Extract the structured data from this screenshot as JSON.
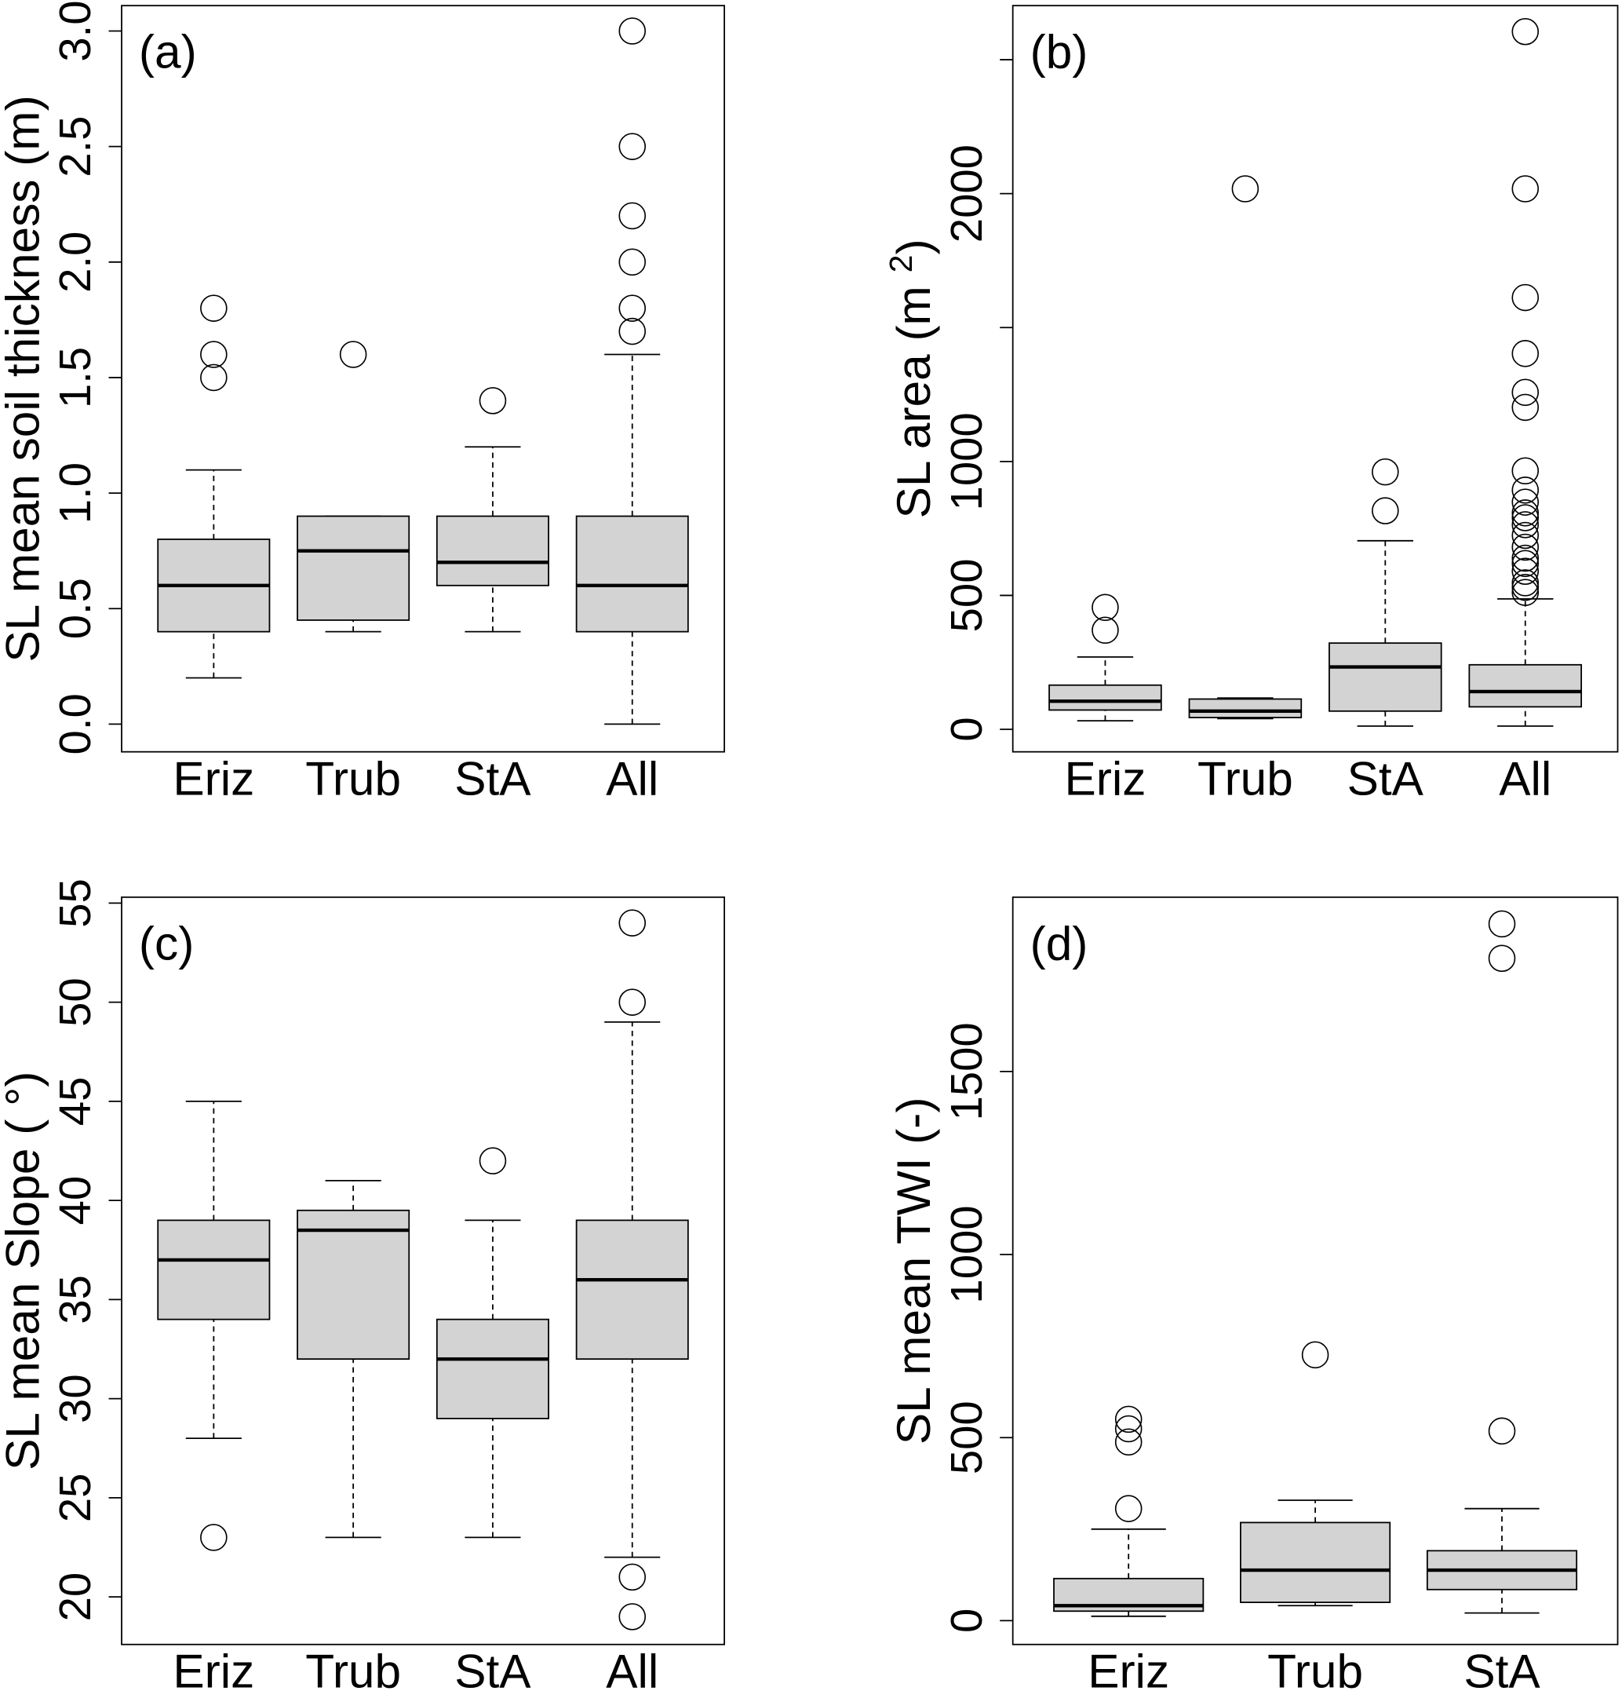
{
  "chart_data": [
    {
      "type": "boxplot",
      "panel_label": "(a)",
      "ylabel_parts": [
        {
          "text": "SL mean soil thickness (m)"
        }
      ],
      "categories": [
        "Eriz",
        "Trub",
        "StA",
        "All"
      ],
      "ylim": [
        -0.12,
        3.11
      ],
      "yticks": [
        0,
        0.5,
        1,
        1.5,
        2,
        2.5,
        3
      ],
      "ytick_labels": [
        "0.0",
        "0.5",
        "1.0",
        "1.5",
        "2.0",
        "2.5",
        "3.0"
      ],
      "boxes": [
        {
          "low": 0.2,
          "q1": 0.4,
          "median": 0.6,
          "q3": 0.8,
          "high": 1.1,
          "outliers": [
            1.5,
            1.6,
            1.8
          ]
        },
        {
          "low": 0.4,
          "q1": 0.45,
          "median": 0.75,
          "q3": 0.9,
          "high": 0.9,
          "outliers": [
            1.6
          ]
        },
        {
          "low": 0.4,
          "q1": 0.6,
          "median": 0.7,
          "q3": 0.9,
          "high": 1.2,
          "outliers": [
            1.4
          ]
        },
        {
          "low": 0.0,
          "q1": 0.4,
          "median": 0.6,
          "q3": 0.9,
          "high": 1.6,
          "outliers": [
            1.7,
            1.8,
            2.0,
            2.2,
            2.5,
            3.0
          ]
        }
      ],
      "fill_color": "#d3d3d3"
    },
    {
      "type": "boxplot",
      "panel_label": "(b)",
      "ylabel_parts": [
        {
          "text": "SL area (m "
        },
        {
          "text": "2",
          "sup": true
        },
        {
          "text": ")"
        }
      ],
      "categories": [
        "Eriz",
        "Trub",
        "StA",
        "All"
      ],
      "ylim": [
        -84,
        2702
      ],
      "yticks": [
        0,
        500,
        1000,
        1500,
        2000,
        2500
      ],
      "ytick_labels": [
        "0",
        "500",
        "1000",
        "",
        "2000",
        ""
      ],
      "boxes": [
        {
          "low": 32,
          "q1": 72,
          "median": 105,
          "q3": 165,
          "high": 270,
          "outliers": [
            370,
            455
          ]
        },
        {
          "low": 40,
          "q1": 44,
          "median": 68,
          "q3": 113,
          "high": 117,
          "outliers": [
            2018
          ]
        },
        {
          "low": 12,
          "q1": 68,
          "median": 233,
          "q3": 322,
          "high": 704,
          "outliers": [
            816,
            961
          ]
        },
        {
          "low": 12,
          "q1": 84,
          "median": 141,
          "q3": 241,
          "high": 487,
          "outliers": [
            511,
            530,
            547,
            590,
            619,
            639,
            680,
            724,
            764,
            790,
            808,
            848,
            893,
            965,
            1202,
            1258,
            1403,
            1612,
            2018,
            2605
          ]
        }
      ],
      "fill_color": "#d3d3d3"
    },
    {
      "type": "boxplot",
      "panel_label": "(c)",
      "ylabel_parts": [
        {
          "text": "SL mean Slope ( °)"
        }
      ],
      "categories": [
        "Eriz",
        "Trub",
        "StA",
        "All"
      ],
      "ylim": [
        17.6,
        55.3
      ],
      "yticks": [
        20,
        25,
        30,
        35,
        40,
        45,
        50,
        55
      ],
      "ytick_labels": [
        "20",
        "25",
        "30",
        "35",
        "40",
        "45",
        "50",
        "55"
      ],
      "boxes": [
        {
          "low": 28,
          "q1": 34,
          "median": 37,
          "q3": 39,
          "high": 45,
          "outliers": [
            23
          ]
        },
        {
          "low": 23,
          "q1": 32,
          "median": 38.5,
          "q3": 39.5,
          "high": 41,
          "outliers": []
        },
        {
          "low": 23,
          "q1": 29,
          "median": 32,
          "q3": 34,
          "high": 39,
          "outliers": [
            42
          ]
        },
        {
          "low": 22,
          "q1": 32,
          "median": 36,
          "q3": 39,
          "high": 49,
          "outliers": [
            19,
            21,
            50,
            54
          ]
        }
      ],
      "fill_color": "#d3d3d3"
    },
    {
      "type": "boxplot",
      "panel_label": "(d)",
      "ylabel_parts": [
        {
          "text": "SL mean TWI (-)"
        }
      ],
      "categories": [
        "Eriz",
        "Trub",
        "StA"
      ],
      "ylim": [
        -65,
        1976
      ],
      "yticks": [
        0,
        500,
        1000,
        1500
      ],
      "ytick_labels": [
        "0",
        "500",
        "1000",
        "1500"
      ],
      "boxes": [
        {
          "low": 12,
          "q1": 26,
          "median": 41,
          "q3": 115,
          "high": 250,
          "outliers": [
            306,
            488,
            524,
            550
          ]
        },
        {
          "low": 41,
          "q1": 50,
          "median": 138,
          "q3": 268,
          "high": 329,
          "outliers": [
            726
          ]
        },
        {
          "low": 21,
          "q1": 85,
          "median": 138,
          "q3": 191,
          "high": 306,
          "outliers": [
            518,
            1809,
            1903
          ]
        }
      ],
      "fill_color": "#d3d3d3"
    }
  ]
}
